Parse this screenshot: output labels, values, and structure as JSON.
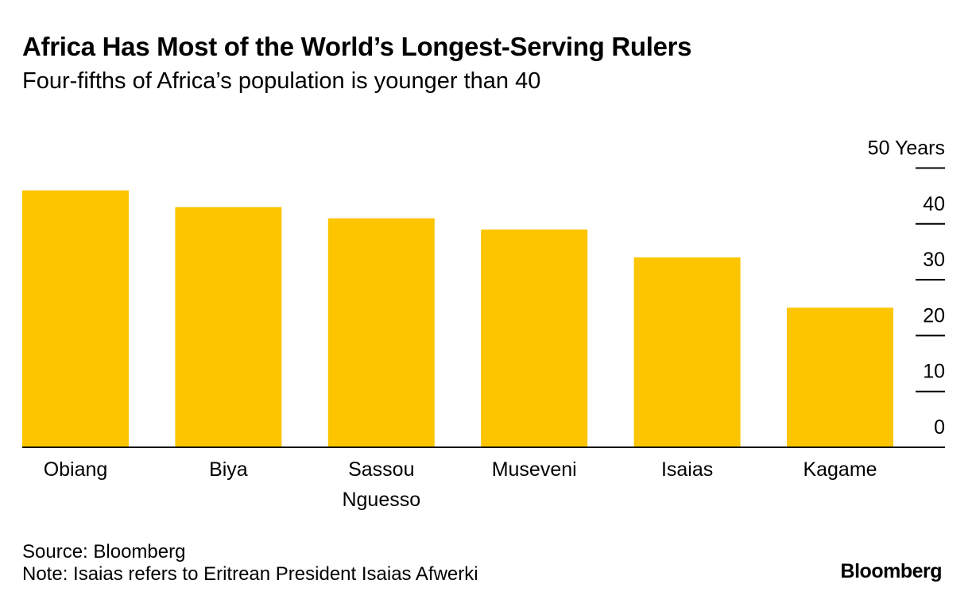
{
  "header": {
    "title": "Africa Has Most of the World’s Longest-Serving Rulers",
    "subtitle": "Four-fifths of Africa’s population is younger than 40"
  },
  "footer": {
    "source": "Source: Bloomberg",
    "note": "Note: Isaias refers to Eritrean President Isaias Afwerki",
    "brand": "Bloomberg"
  },
  "colors": {
    "bar": "#fdc500",
    "axis": "#000000",
    "text": "#000000"
  },
  "chart_data": {
    "type": "bar",
    "categories": [
      [
        "Obiang"
      ],
      [
        "Biya"
      ],
      [
        "Sassou",
        "Nguesso"
      ],
      [
        "Museveni"
      ],
      [
        "Isaias"
      ],
      [
        "Kagame"
      ]
    ],
    "values": [
      46,
      43,
      41,
      39,
      34,
      25
    ],
    "ylim": [
      0,
      50
    ],
    "yticks": [
      0,
      10,
      20,
      30,
      40,
      50
    ],
    "ytick_labels": [
      "0",
      "10",
      "20",
      "30",
      "40",
      "50 Years"
    ],
    "grid": false,
    "legend": "none"
  }
}
